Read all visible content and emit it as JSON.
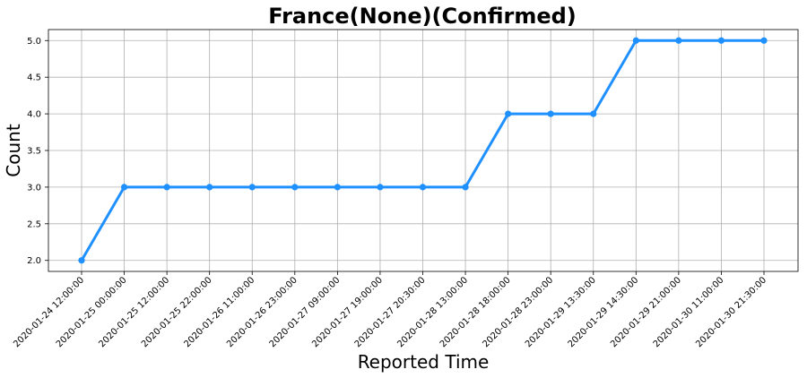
{
  "chart_data": {
    "type": "line",
    "title": "France(None)(Confirmed)",
    "xlabel": "Reported Time",
    "ylabel": "Count",
    "grid": true,
    "ylim": [
      1.85,
      5.15
    ],
    "yticks": [
      "2.0",
      "2.5",
      "3.0",
      "3.5",
      "4.0",
      "4.5",
      "5.0"
    ],
    "categories": [
      "2020-01-24 12:00:00",
      "2020-01-25 00:00:00",
      "2020-01-25 12:00:00",
      "2020-01-25 22:00:00",
      "2020-01-26 11:00:00",
      "2020-01-26 23:00:00",
      "2020-01-27 09:00:00",
      "2020-01-27 19:00:00",
      "2020-01-27 20:30:00",
      "2020-01-28 13:00:00",
      "2020-01-28 18:00:00",
      "2020-01-28 23:00:00",
      "2020-01-29 13:30:00",
      "2020-01-29 14:30:00",
      "2020-01-29 21:00:00",
      "2020-01-30 11:00:00",
      "2020-01-30 21:30:00"
    ],
    "series": [
      {
        "color": "#1e90ff",
        "values": [
          2,
          3,
          3,
          3,
          3,
          3,
          3,
          3,
          3,
          3,
          4,
          4,
          4,
          5,
          5,
          5,
          5
        ]
      }
    ]
  }
}
